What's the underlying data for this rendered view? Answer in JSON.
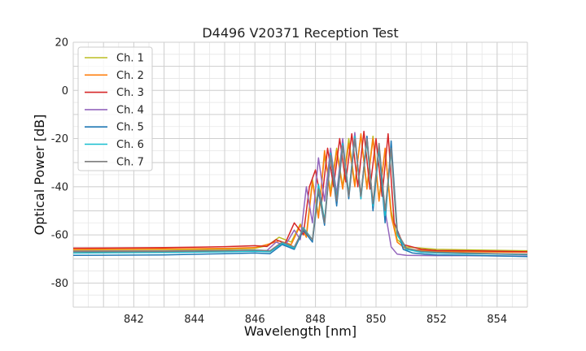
{
  "chart_data": {
    "type": "line",
    "title": "D4496 V20371 Reception Test",
    "xlabel": "Wavelength [nm]",
    "ylabel": "Optical Power [dB]",
    "xlim": [
      840.0,
      855.0
    ],
    "ylim": [
      -90,
      20
    ],
    "xticks": [
      842,
      844,
      846,
      848,
      850,
      852,
      854
    ],
    "yticks": [
      20,
      0,
      -20,
      -40,
      -60,
      -80
    ],
    "grid": true,
    "legend_position": "top-left",
    "series": [
      {
        "name": "Ch. 1",
        "color": "#bcbd22",
        "x": [
          840.0,
          843.0,
          845.0,
          846.0,
          846.4,
          846.8,
          847.2,
          847.5,
          847.7,
          847.9,
          848.1,
          848.3,
          848.5,
          848.7,
          848.9,
          849.1,
          849.3,
          849.5,
          849.7,
          849.9,
          850.1,
          850.3,
          850.5,
          850.7,
          851.0,
          851.5,
          852.0,
          853.0,
          855.0
        ],
        "y": [
          -66.5,
          -66.4,
          -66.0,
          -65.6,
          -64.5,
          -61.0,
          -63.0,
          -55.5,
          -60.0,
          -37.0,
          -52.0,
          -27.0,
          -42.0,
          -24.0,
          -40.0,
          -20.0,
          -39.0,
          -18.5,
          -40.0,
          -19.0,
          -45.0,
          -25.0,
          -50.0,
          -62.0,
          -65.0,
          -65.5,
          -66.0,
          -66.2,
          -66.6
        ]
      },
      {
        "name": "Ch. 2",
        "color": "#ff7f0e",
        "x": [
          840.0,
          843.0,
          845.0,
          846.0,
          846.4,
          846.8,
          847.2,
          847.5,
          847.7,
          847.9,
          848.1,
          848.3,
          848.5,
          848.7,
          848.9,
          849.1,
          849.3,
          849.5,
          849.7,
          849.9,
          850.1,
          850.3,
          850.5,
          850.7,
          851.0,
          851.5,
          852.0,
          853.0,
          855.0
        ],
        "y": [
          -66.0,
          -65.8,
          -65.6,
          -65.3,
          -64.0,
          -62.5,
          -64.0,
          -56.0,
          -61.0,
          -38.0,
          -53.0,
          -25.0,
          -44.0,
          -25.0,
          -41.0,
          -22.0,
          -40.0,
          -18.0,
          -41.0,
          -20.0,
          -46.0,
          -24.0,
          -52.0,
          -63.0,
          -66.0,
          -66.4,
          -66.8,
          -67.0,
          -67.2
        ]
      },
      {
        "name": "Ch. 3",
        "color": "#d62728",
        "x": [
          840.0,
          843.0,
          845.0,
          846.0,
          846.4,
          846.7,
          847.0,
          847.3,
          847.6,
          847.8,
          848.0,
          848.2,
          848.4,
          848.6,
          848.8,
          849.0,
          849.2,
          849.4,
          849.6,
          849.8,
          850.0,
          850.2,
          850.4,
          850.6,
          850.9,
          851.5,
          852.0,
          853.0,
          855.0
        ],
        "y": [
          -65.5,
          -65.3,
          -64.9,
          -64.5,
          -64.8,
          -62.0,
          -63.5,
          -55.0,
          -60.0,
          -40.0,
          -33.0,
          -47.0,
          -24.0,
          -40.0,
          -20.0,
          -38.0,
          -18.0,
          -40.0,
          -17.0,
          -41.0,
          -20.0,
          -44.0,
          -18.0,
          -55.0,
          -64.0,
          -66.0,
          -66.5,
          -66.6,
          -67.0
        ]
      },
      {
        "name": "Ch. 4",
        "color": "#9467bd",
        "x": [
          840.0,
          843.0,
          845.0,
          846.0,
          846.4,
          846.7,
          847.0,
          847.3,
          847.5,
          847.7,
          847.9,
          848.1,
          848.3,
          848.5,
          848.7,
          848.9,
          849.1,
          849.3,
          849.5,
          849.7,
          849.9,
          850.1,
          850.3,
          850.5,
          850.7,
          851.0,
          852.0,
          853.0,
          855.0
        ],
        "y": [
          -66.8,
          -66.7,
          -66.5,
          -66.3,
          -66.5,
          -63.0,
          -64.5,
          -58.0,
          -62.0,
          -40.0,
          -55.0,
          -28.0,
          -46.0,
          -24.0,
          -43.0,
          -20.0,
          -44.0,
          -17.5,
          -45.0,
          -19.0,
          -48.0,
          -24.0,
          -50.0,
          -65.0,
          -68.0,
          -68.5,
          -68.6,
          -68.6,
          -68.8
        ]
      },
      {
        "name": "Ch. 5",
        "color": "#1f77b4",
        "x": [
          840.0,
          843.0,
          845.0,
          846.0,
          846.5,
          846.9,
          847.3,
          847.6,
          847.9,
          848.1,
          848.3,
          848.5,
          848.7,
          848.9,
          849.1,
          849.3,
          849.5,
          849.7,
          849.9,
          850.1,
          850.3,
          850.5,
          850.7,
          850.9,
          851.2,
          851.6,
          852.0,
          853.0,
          855.0
        ],
        "y": [
          -68.5,
          -68.3,
          -67.8,
          -67.5,
          -67.8,
          -64.0,
          -66.0,
          -58.0,
          -63.0,
          -42.0,
          -56.0,
          -27.0,
          -48.0,
          -23.0,
          -45.0,
          -20.0,
          -44.0,
          -19.0,
          -50.0,
          -24.0,
          -55.0,
          -21.0,
          -58.0,
          -66.0,
          -67.5,
          -68.0,
          -68.3,
          -68.5,
          -69.0
        ]
      },
      {
        "name": "Ch. 6",
        "color": "#17becf",
        "x": [
          840.0,
          843.0,
          845.0,
          846.0,
          846.5,
          846.9,
          847.3,
          847.6,
          847.9,
          848.1,
          848.3,
          848.5,
          848.7,
          848.9,
          849.1,
          849.3,
          849.5,
          849.7,
          849.9,
          850.1,
          850.3,
          850.5,
          850.7,
          851.0,
          851.5,
          852.0,
          853.0,
          854.0,
          855.0
        ],
        "y": [
          -67.5,
          -67.3,
          -67.0,
          -66.8,
          -67.0,
          -63.5,
          -65.5,
          -57.0,
          -62.0,
          -39.0,
          -54.0,
          -26.0,
          -45.0,
          -22.0,
          -43.0,
          -19.0,
          -45.0,
          -21.0,
          -48.0,
          -23.0,
          -52.0,
          -25.0,
          -60.0,
          -66.0,
          -67.2,
          -67.5,
          -67.8,
          -68.0,
          -68.2
        ]
      },
      {
        "name": "Ch. 7",
        "color": "#7f7f7f",
        "x": [
          840.0,
          843.0,
          845.0,
          846.0,
          846.5,
          846.9,
          847.3,
          847.6,
          847.9,
          848.1,
          848.3,
          848.5,
          848.7,
          848.9,
          849.1,
          849.3,
          849.5,
          849.7,
          849.9,
          850.1,
          850.3,
          850.5,
          850.7,
          851.0,
          851.5,
          852.0,
          853.0,
          854.0,
          855.0
        ],
        "y": [
          -67.0,
          -66.9,
          -66.6,
          -66.3,
          -66.6,
          -63.0,
          -65.0,
          -57.5,
          -62.0,
          -41.0,
          -55.0,
          -27.0,
          -46.0,
          -23.0,
          -44.0,
          -20.0,
          -44.0,
          -20.0,
          -47.0,
          -22.0,
          -50.0,
          -24.0,
          -59.0,
          -65.5,
          -66.8,
          -67.2,
          -67.5,
          -67.8,
          -68.0
        ]
      }
    ]
  }
}
